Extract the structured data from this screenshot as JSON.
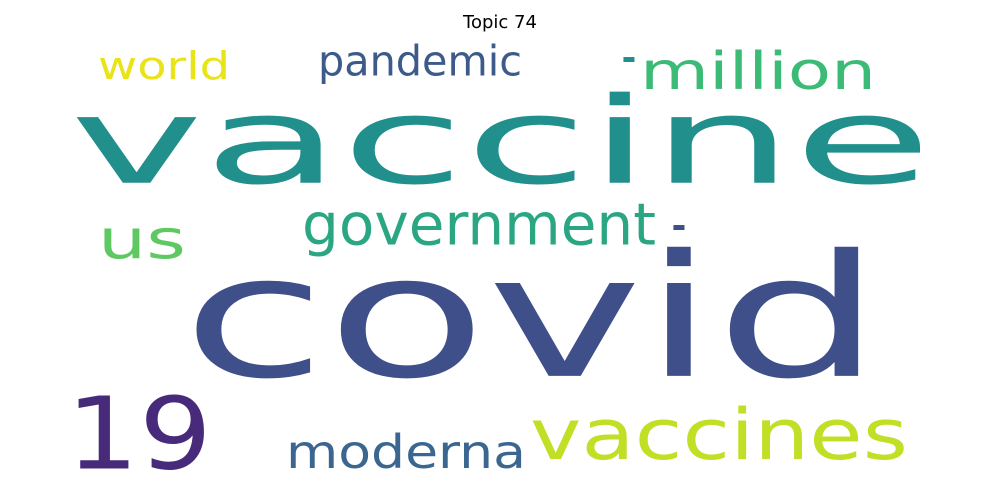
{
  "title": "Topic 74",
  "words": [
    {
      "text": "vaccine",
      "color": "#21908d"
    },
    {
      "text": "covid",
      "color": "#3f4f8a"
    },
    {
      "text": "19",
      "color": "#472a7a"
    },
    {
      "text": "vaccines",
      "color": "#c0df25"
    },
    {
      "text": "government",
      "color": "#2aa683"
    },
    {
      "text": "us",
      "color": "#5ec962"
    },
    {
      "text": "million",
      "color": "#3bbb75"
    },
    {
      "text": "pandemic",
      "color": "#3c5b8b"
    },
    {
      "text": "moderna",
      "color": "#3a6690"
    },
    {
      "text": "world",
      "color": "#e8e419"
    },
    {
      "text": ".",
      "color": "#3f4f8a"
    },
    {
      "text": ".",
      "color": "#21908d"
    }
  ]
}
